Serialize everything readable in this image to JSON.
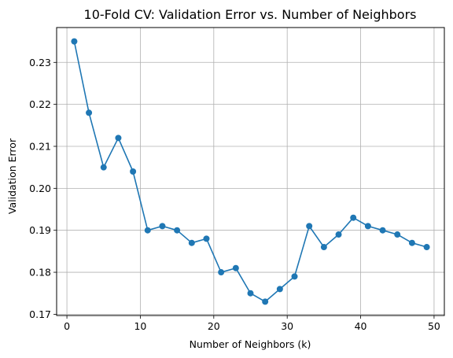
{
  "chart_data": {
    "type": "line",
    "title": "10-Fold CV: Validation Error vs. Number of Neighbors",
    "xlabel": "Number of Neighbors (k)",
    "ylabel": "Validation Error",
    "xlim": [
      -1.4,
      51.4
    ],
    "ylim": [
      0.1697,
      0.2383
    ],
    "xticks": [
      0,
      10,
      20,
      30,
      40,
      50
    ],
    "yticks": [
      0.17,
      0.18,
      0.19,
      0.2,
      0.21,
      0.22,
      0.23
    ],
    "ytick_labels": [
      "0.17",
      "0.18",
      "0.19",
      "0.20",
      "0.21",
      "0.22",
      "0.23"
    ],
    "grid": true,
    "marker": "circle",
    "series": [
      {
        "color": "#1f77b4",
        "x": [
          1,
          3,
          5,
          7,
          9,
          11,
          13,
          15,
          17,
          19,
          21,
          23,
          25,
          27,
          29,
          31,
          33,
          35,
          37,
          39,
          41,
          43,
          45,
          47,
          49
        ],
        "y": [
          0.235,
          0.218,
          0.205,
          0.212,
          0.204,
          0.19,
          0.191,
          0.19,
          0.187,
          0.188,
          0.18,
          0.181,
          0.175,
          0.173,
          0.176,
          0.179,
          0.191,
          0.186,
          0.189,
          0.193,
          0.191,
          0.19,
          0.189,
          0.187,
          0.186
        ]
      }
    ]
  }
}
